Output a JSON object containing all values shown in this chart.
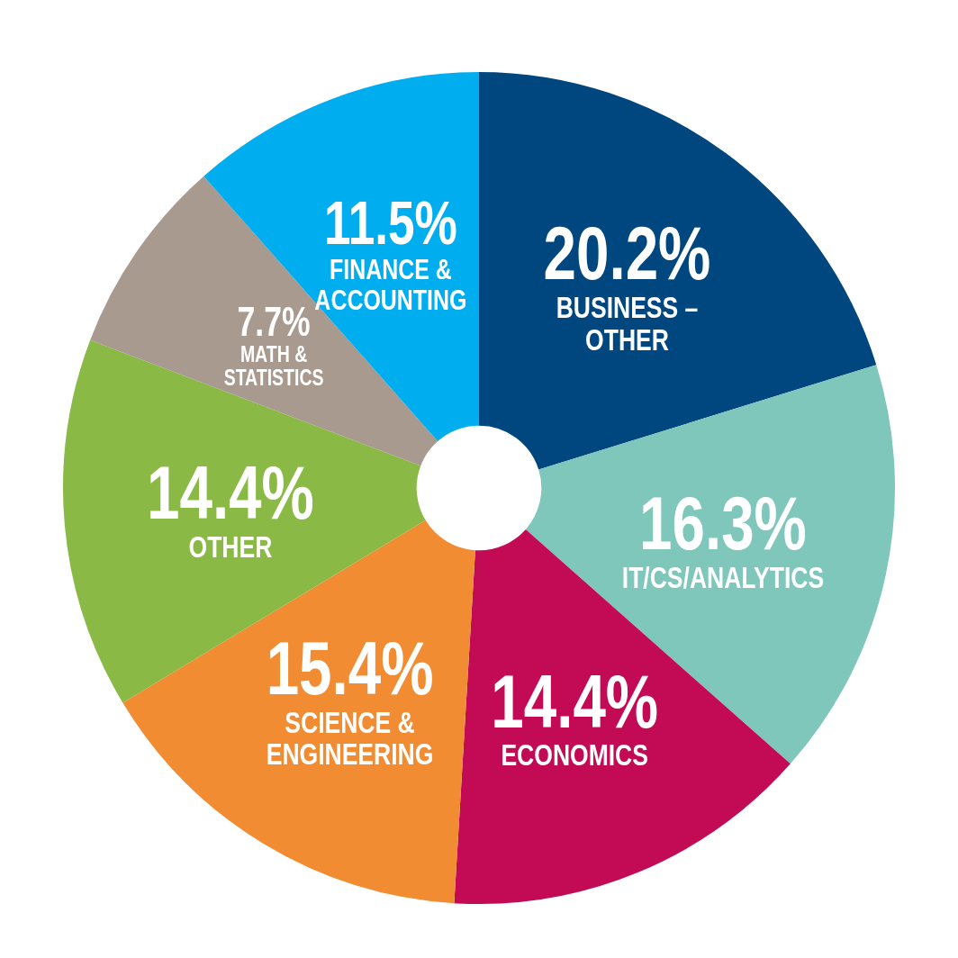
{
  "chart_data": {
    "type": "donut",
    "categories": [
      "BUSINESS – OTHER",
      "IT/CS/ANALYTICS",
      "ECONOMICS",
      "SCIENCE & ENGINEERING",
      "OTHER",
      "MATH & STATISTICS",
      "FINANCE & ACCOUNTING"
    ],
    "values": [
      20.2,
      16.3,
      14.4,
      15.4,
      14.4,
      7.7,
      11.5
    ],
    "value_labels": [
      "20.2%",
      "16.3%",
      "14.4%",
      "15.4%",
      "14.4%",
      "7.7%",
      "11.5%"
    ],
    "colors": [
      "#00467f",
      "#7fc6bb",
      "#c30a55",
      "#f28c33",
      "#8aba45",
      "#a89a8e",
      "#00aeef"
    ],
    "legend": false
  }
}
